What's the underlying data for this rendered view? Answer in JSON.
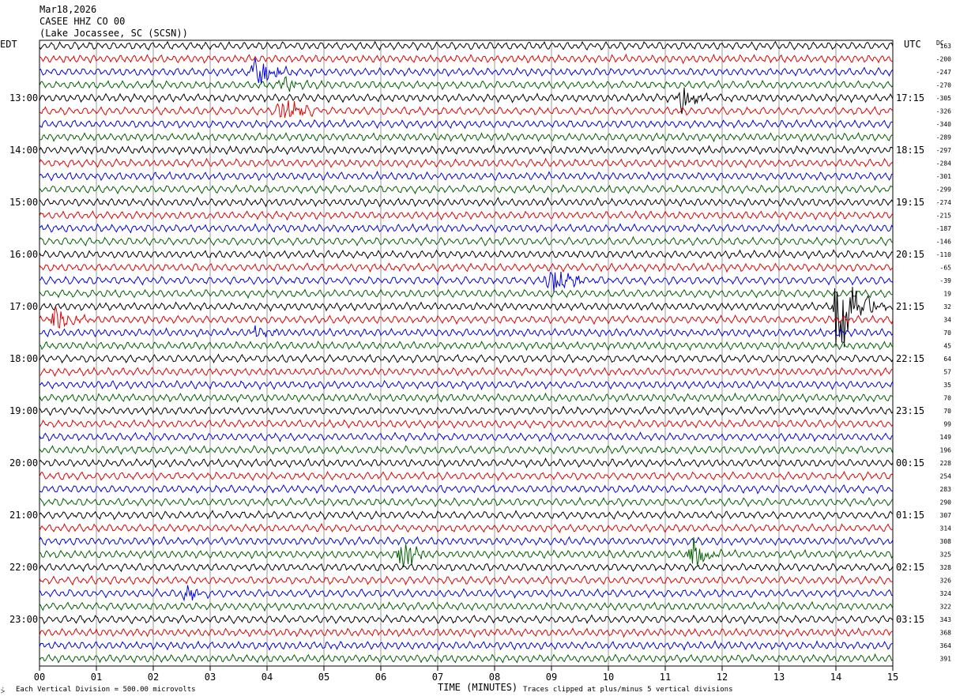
{
  "header": {
    "date": "Mar18,2026",
    "station": "CASEE HHZ CO 00",
    "location": "(Lake Jocassee, SC (SCSN))"
  },
  "labels": {
    "left_tz": "EDT",
    "right_tz": "UTC",
    "dc": "DC"
  },
  "footer": {
    "division": "Each Vertical Division =  500.00 microvolts",
    "clip": "Traces clipped at plus/minus 5 vertical divisions",
    "corner": "⩼"
  },
  "chart_data": {
    "type": "helicorder",
    "xlabel": "TIME (MINUTES)",
    "x_ticks": [
      "00",
      "01",
      "02",
      "03",
      "04",
      "05",
      "06",
      "07",
      "08",
      "09",
      "10",
      "11",
      "12",
      "13",
      "14",
      "15"
    ],
    "xlim": [
      0,
      15
    ],
    "trace_colors": [
      "#000000",
      "#e00000",
      "#0000e0",
      "#006000"
    ],
    "left_hour_labels": [
      "13:00",
      "14:00",
      "15:00",
      "16:00",
      "17:00",
      "18:00",
      "19:00",
      "20:00",
      "21:00",
      "22:00",
      "23:00"
    ],
    "right_hour_labels": [
      "17:15",
      "18:15",
      "19:15",
      "20:15",
      "21:15",
      "22:15",
      "23:15",
      "00:15",
      "01:15",
      "02:15",
      "03:15"
    ],
    "dc_offsets": [
      "163",
      "-200",
      "-247",
      "-270",
      "-305",
      "-326",
      "-340",
      "-289",
      "-297",
      "-284",
      "-301",
      "-299",
      "-274",
      "-215",
      "-187",
      "-146",
      "-110",
      "-65",
      "-39",
      "19",
      "32",
      "34",
      "70",
      "45",
      "64",
      "57",
      "35",
      "70",
      "70",
      "99",
      "149",
      "196",
      "228",
      "254",
      "283",
      "290",
      "307",
      "314",
      "308",
      "325",
      "328",
      "326",
      "324",
      "322",
      "343",
      "368",
      "364",
      "391"
    ],
    "events": [
      {
        "trace": 2,
        "minute": 3.8,
        "amplitude": 1.4
      },
      {
        "trace": 3,
        "minute": 4.3,
        "amplitude": 0.8
      },
      {
        "trace": 4,
        "minute": 11.3,
        "amplitude": 1.2
      },
      {
        "trace": 5,
        "minute": 4.3,
        "amplitude": 1.8
      },
      {
        "trace": 18,
        "minute": 9.0,
        "amplitude": 1.8
      },
      {
        "trace": 20,
        "minute": 14.05,
        "amplitude": 5.0
      },
      {
        "trace": 21,
        "minute": 0.3,
        "amplitude": 1.1
      },
      {
        "trace": 22,
        "minute": 3.8,
        "amplitude": 0.6
      },
      {
        "trace": 39,
        "minute": 6.4,
        "amplitude": 1.6
      },
      {
        "trace": 39,
        "minute": 11.5,
        "amplitude": 1.3
      },
      {
        "trace": 42,
        "minute": 2.6,
        "amplitude": 0.6
      }
    ]
  }
}
